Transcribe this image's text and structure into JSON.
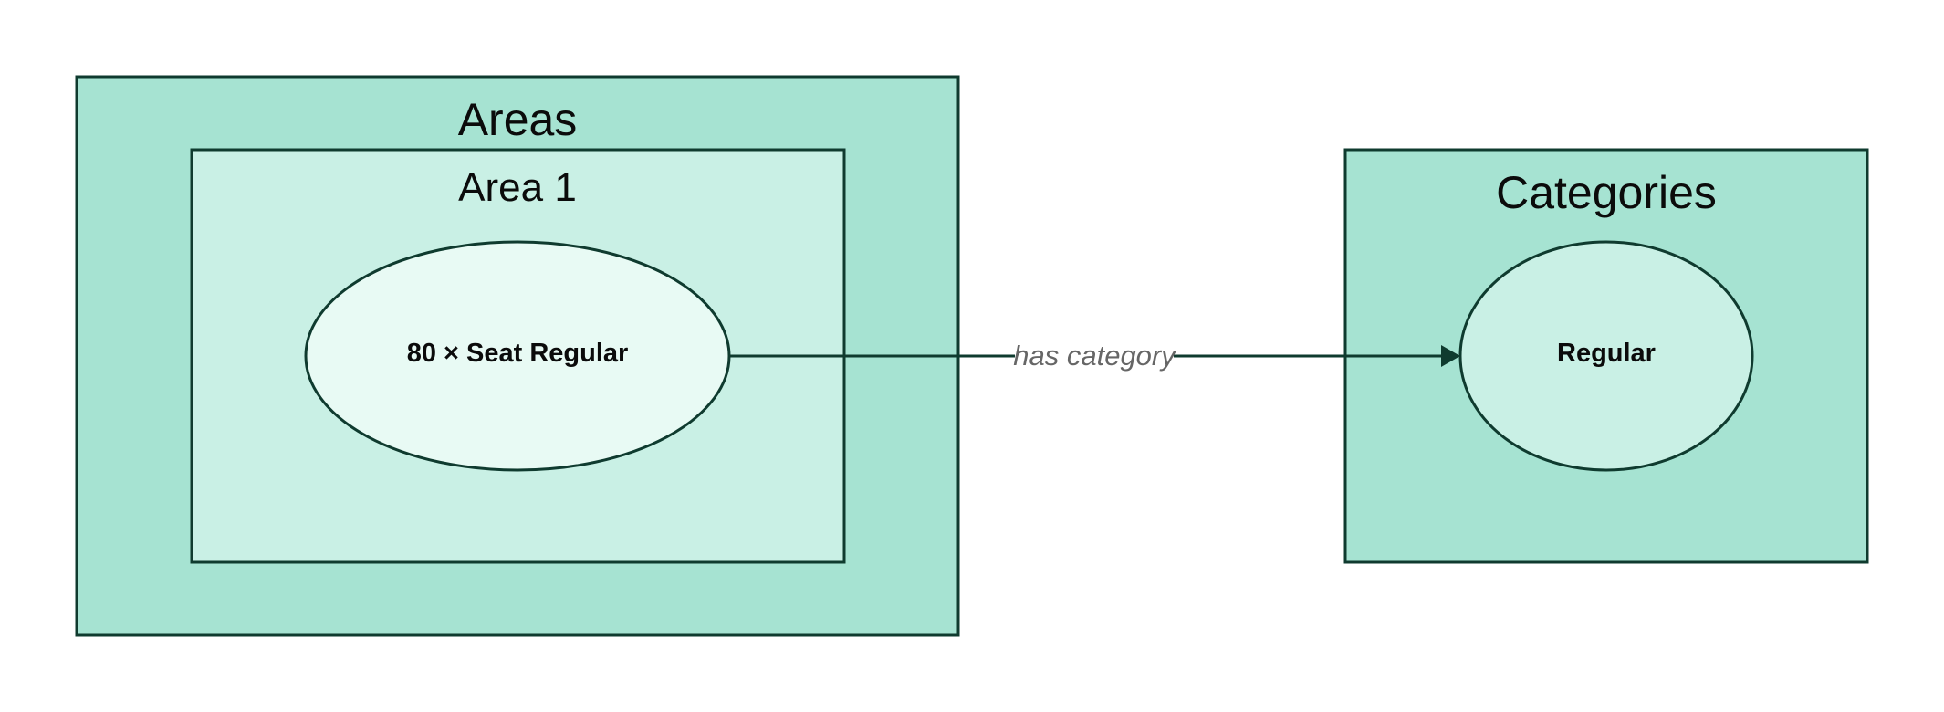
{
  "diagram": {
    "areas_group": {
      "title": "Areas"
    },
    "area1_group": {
      "title": "Area 1"
    },
    "seat_node": {
      "label": "80 × Seat Regular"
    },
    "categories_group": {
      "title": "Categories"
    },
    "regular_node": {
      "label": "Regular"
    },
    "edge": {
      "label": "has category"
    }
  },
  "colors": {
    "outer_fill": "#a6e3d2",
    "inner_fill": "#c9f0e5",
    "seat_fill": "#e8faf4",
    "stroke": "#0f3b2f",
    "edge_label": "#666666",
    "text": "#0b0b0b"
  }
}
